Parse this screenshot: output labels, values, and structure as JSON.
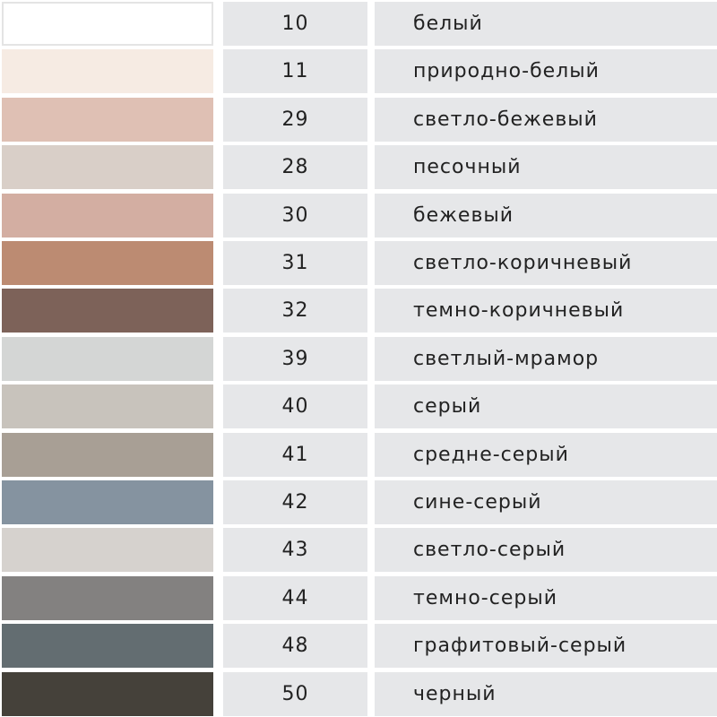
{
  "colors": [
    {
      "code": "10",
      "name": "белый",
      "hex": "#ffffff"
    },
    {
      "code": "11",
      "name": "природно-белый",
      "hex": "#f6ebe3"
    },
    {
      "code": "29",
      "name": "светло-бежевый",
      "hex": "#dfc0b4"
    },
    {
      "code": "28",
      "name": "песочный",
      "hex": "#d9cfc8"
    },
    {
      "code": "30",
      "name": "бежевый",
      "hex": "#d3aea2"
    },
    {
      "code": "31",
      "name": "светло-коричневый",
      "hex": "#bc8b72"
    },
    {
      "code": "32",
      "name": "темно-коричневый",
      "hex": "#7d6259"
    },
    {
      "code": "39",
      "name": "светлый-мрамор",
      "hex": "#d4d6d5"
    },
    {
      "code": "40",
      "name": "серый",
      "hex": "#c8c3bc"
    },
    {
      "code": "41",
      "name": "средне-серый",
      "hex": "#a89f95"
    },
    {
      "code": "42",
      "name": "сине-серый",
      "hex": "#8593a0"
    },
    {
      "code": "43",
      "name": "светло-серый",
      "hex": "#d6d2ce"
    },
    {
      "code": "44",
      "name": "темно-серый",
      "hex": "#838180"
    },
    {
      "code": "48",
      "name": "графитовый-серый",
      "hex": "#636d71"
    },
    {
      "code": "50",
      "name": "черный",
      "hex": "#45413a"
    }
  ]
}
